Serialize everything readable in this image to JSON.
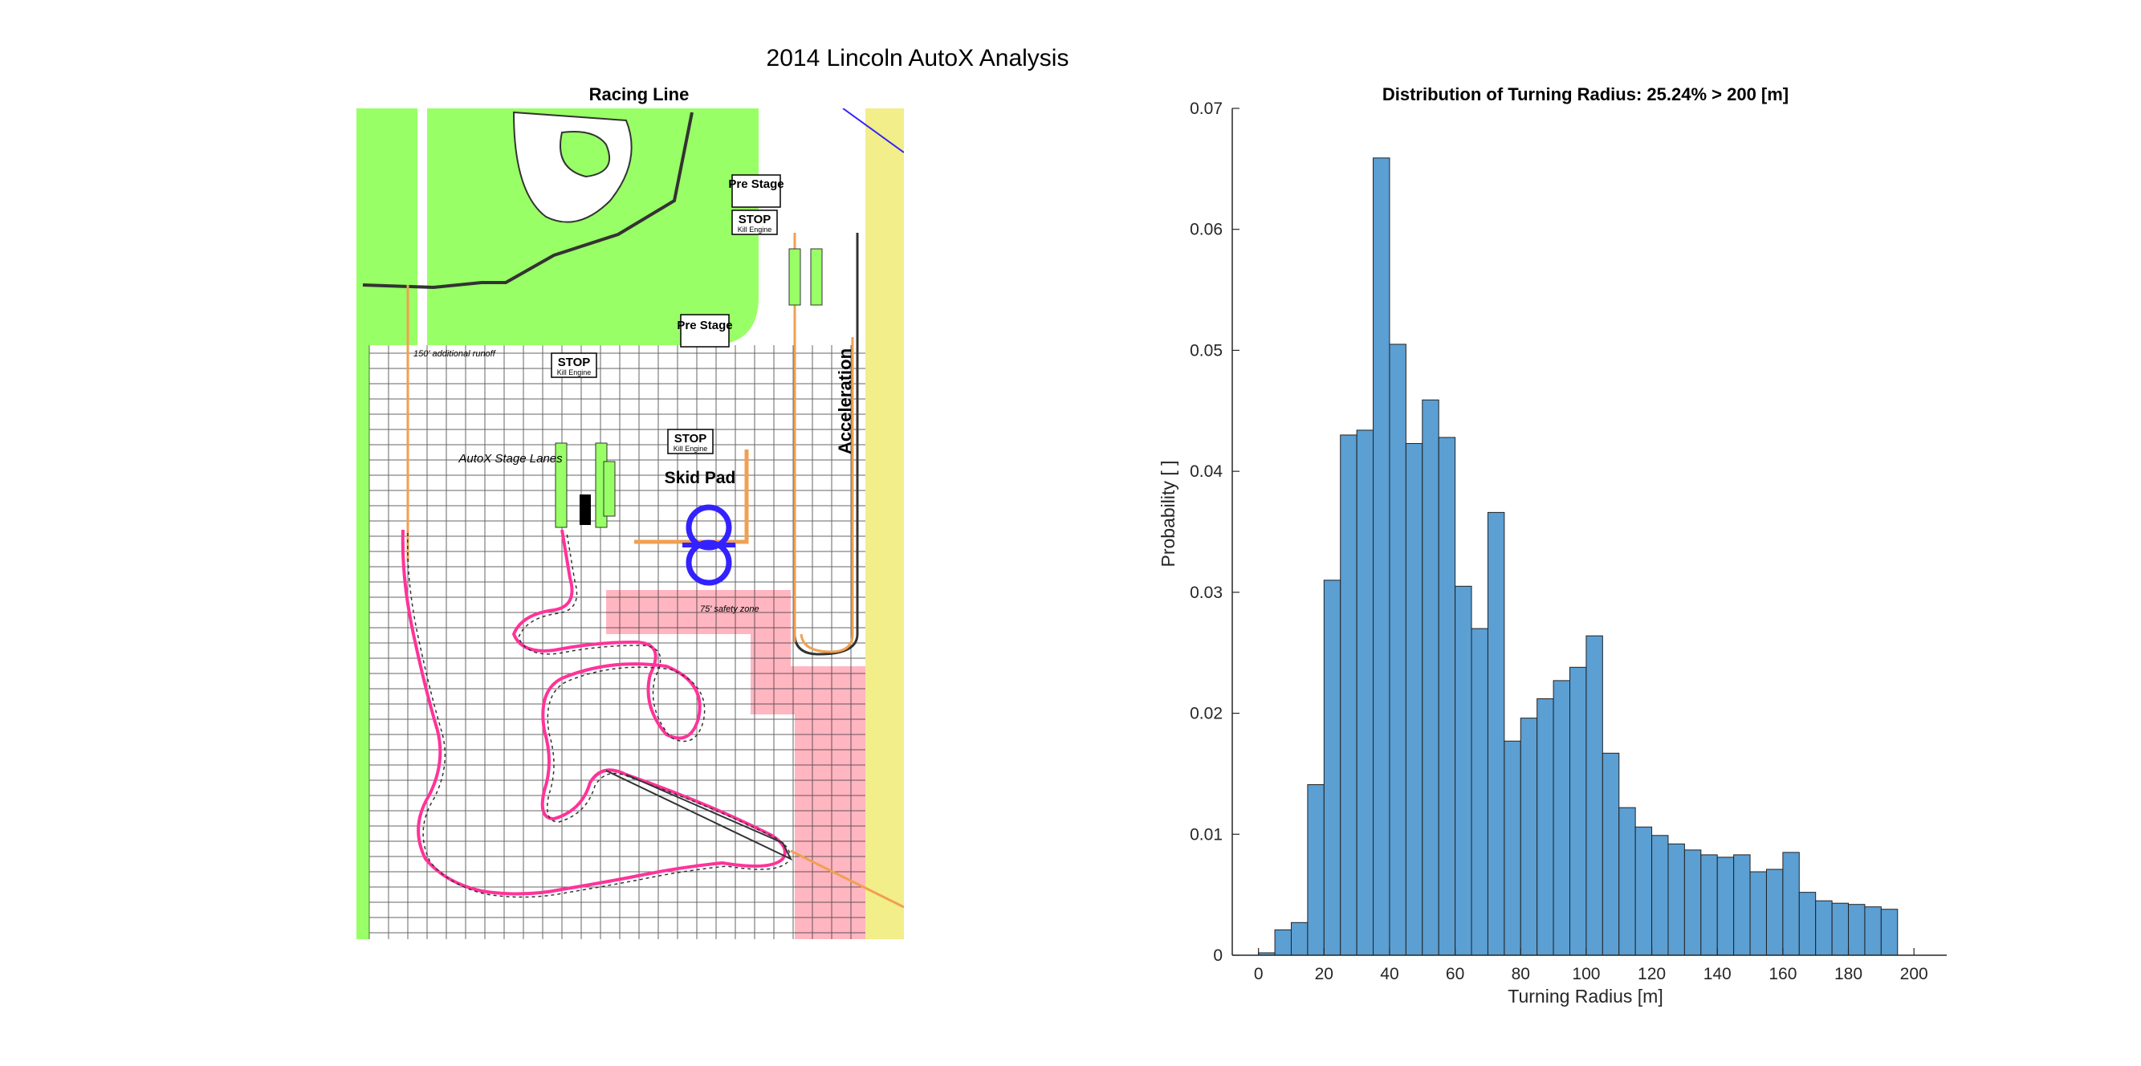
{
  "figure": {
    "suptitle": "2014 Lincoln AutoX Analysis"
  },
  "map_panel": {
    "title": "Racing Line",
    "labels": {
      "pre_stage_top": "Pre Stage",
      "stop_top": "STOP",
      "kill_engine": "Kill Engine",
      "pre_stage_mid": "Pre Stage",
      "stop_mid": "STOP",
      "stop_skid": "STOP",
      "skid_pad": "Skid Pad",
      "acceleration": "Acceleration",
      "autox_stage": "AutoX Stage Lanes",
      "runoff": "150' additional runoff",
      "safety_zone": "75' safety zone"
    },
    "colors": {
      "grass": "#99ff66",
      "safety": "#ffb6c1",
      "yellow_strip": "#f2ee8a",
      "racing_line": "#ff3399",
      "skid_pad_loop": "#3322ff",
      "orange": "#f0a050"
    }
  },
  "chart_data": {
    "type": "bar",
    "title": "Distribution of Turning Radius: 25.24% > 200 [m]",
    "xlabel": "Turning Radius [m]",
    "ylabel": "Probability [ ]",
    "xlim": [
      -8,
      210
    ],
    "ylim": [
      0,
      0.07
    ],
    "xticks": [
      0,
      20,
      40,
      60,
      80,
      100,
      120,
      140,
      160,
      180,
      200
    ],
    "yticks": [
      0,
      0.01,
      0.02,
      0.03,
      0.04,
      0.05,
      0.06,
      0.07
    ],
    "grid": false,
    "bin_width": 5,
    "bin_edges_start": 0,
    "values": [
      0.0002,
      0.0021,
      0.0027,
      0.0141,
      0.031,
      0.043,
      0.0434,
      0.0659,
      0.0505,
      0.0423,
      0.0459,
      0.0428,
      0.0305,
      0.027,
      0.0366,
      0.0177,
      0.0196,
      0.0212,
      0.0227,
      0.0238,
      0.0264,
      0.0167,
      0.0122,
      0.0106,
      0.0099,
      0.0092,
      0.0087,
      0.0083,
      0.0081,
      0.0083,
      0.0069,
      0.0071,
      0.0085,
      0.0052,
      0.0045,
      0.0043,
      0.0042,
      0.004,
      0.0038
    ],
    "bar_color": "#5b9fd3",
    "edge_color": "#222222"
  }
}
